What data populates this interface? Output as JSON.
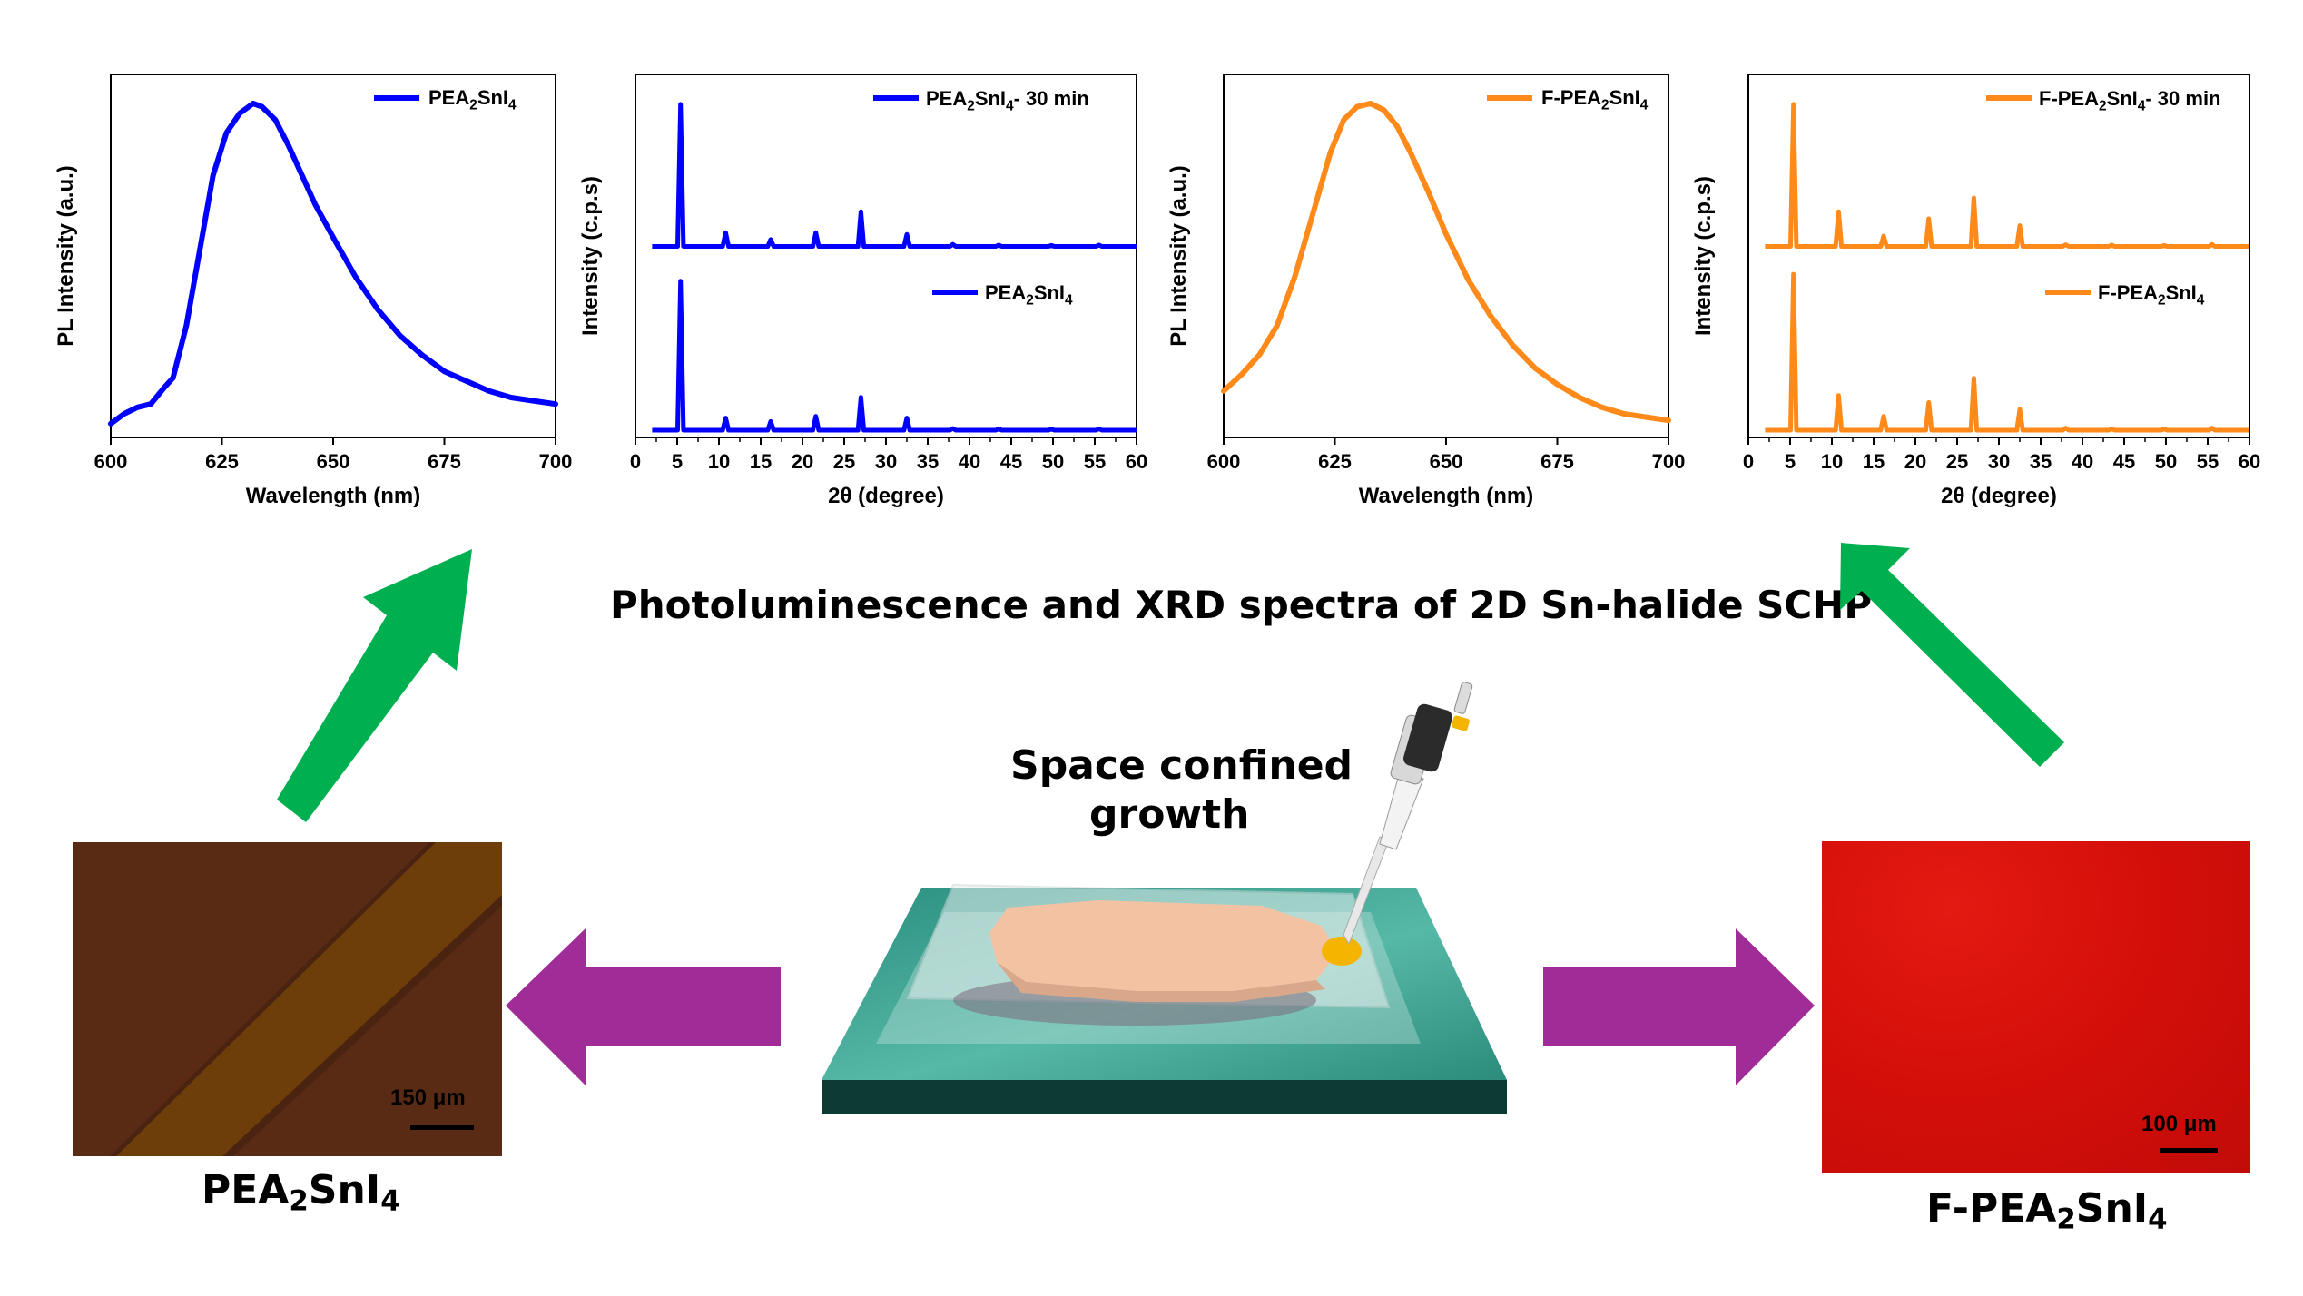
{
  "figure_title": "Photoluminescence and XRD spectra of 2D Sn-halide SCHP",
  "center_label_line1": "Space confined",
  "center_label_line2": "growth",
  "colors": {
    "blue": "#0000ff",
    "orange": "#ff8a1a",
    "green_arrow": "#00b050",
    "purple_arrow": "#a02c97"
  },
  "left_sample": {
    "name_prefix": "PEA",
    "name_sub1": "2",
    "name_mid": "SnI",
    "name_sub2": "4",
    "scale_bar": "150 μm"
  },
  "right_sample": {
    "name_prefix": "F-PEA",
    "name_sub1": "2",
    "name_mid": "SnI",
    "name_sub2": "4",
    "scale_bar": "100 μm"
  },
  "chart_data": [
    {
      "type": "line",
      "color": "#0000ff",
      "xlabel": "Wavelength (nm)",
      "ylabel": "PL Intensity (a.u.)",
      "xlim": [
        600,
        700
      ],
      "xticks": [
        "600",
        "625",
        "650",
        "675",
        "700"
      ],
      "ylim": [
        0,
        1
      ],
      "legend": [
        {
          "prefix": "PEA",
          "sub1": "2",
          "mid": "SnI",
          "sub2": "4",
          "suffix": ""
        }
      ],
      "legend_position": "top-right",
      "x": [
        600,
        603,
        606,
        609,
        612,
        614,
        617,
        620,
        623,
        626,
        629,
        632,
        634,
        637,
        640,
        643,
        646,
        650,
        655,
        660,
        665,
        670,
        675,
        680,
        685,
        690,
        695,
        700
      ],
      "y": [
        0.02,
        0.05,
        0.07,
        0.08,
        0.13,
        0.16,
        0.32,
        0.55,
        0.78,
        0.91,
        0.97,
        1.0,
        0.99,
        0.95,
        0.87,
        0.78,
        0.69,
        0.59,
        0.47,
        0.37,
        0.29,
        0.23,
        0.18,
        0.15,
        0.12,
        0.1,
        0.09,
        0.08
      ]
    },
    {
      "type": "line",
      "color": "#0000ff",
      "xlabel": "2θ (degree)",
      "ylabel": "Intensity (c.p.s)",
      "xlim": [
        0,
        60
      ],
      "xticks": [
        "0",
        "5",
        "10",
        "15",
        "20",
        "25",
        "30",
        "35",
        "40",
        "45",
        "50",
        "55",
        "60"
      ],
      "legend_position": "top-right",
      "series": [
        {
          "name_prefix": "PEA",
          "name_sub1": "2",
          "name_mid": "SnI",
          "name_sub2": "4",
          "name_suffix": "- 30 min",
          "baseline": 0.53,
          "peaks": [
            [
              5.4,
              0.41
            ],
            [
              10.8,
              0.04
            ],
            [
              16.2,
              0.02
            ],
            [
              21.6,
              0.04
            ],
            [
              27.0,
              0.1
            ],
            [
              32.5,
              0.035
            ],
            [
              38.0,
              0.006
            ],
            [
              43.5,
              0.004
            ],
            [
              49.8,
              0.003
            ],
            [
              55.5,
              0.004
            ]
          ]
        },
        {
          "name_prefix": "PEA",
          "name_sub1": "2",
          "name_mid": "SnI",
          "name_sub2": "4",
          "name_suffix": "",
          "baseline": 0.0,
          "peaks": [
            [
              5.4,
              0.43
            ],
            [
              10.8,
              0.035
            ],
            [
              16.2,
              0.025
            ],
            [
              21.6,
              0.04
            ],
            [
              27.0,
              0.095
            ],
            [
              32.5,
              0.035
            ],
            [
              38.0,
              0.005
            ],
            [
              43.5,
              0.004
            ],
            [
              49.8,
              0.003
            ],
            [
              55.5,
              0.004
            ]
          ]
        }
      ]
    },
    {
      "type": "line",
      "color": "#ff8a1a",
      "xlabel": "Wavelength (nm)",
      "ylabel": "PL Intensity (a.u.)",
      "xlim": [
        600,
        700
      ],
      "xticks": [
        "600",
        "625",
        "650",
        "675",
        "700"
      ],
      "ylim": [
        0,
        1
      ],
      "legend": [
        {
          "prefix": "F-PEA",
          "sub1": "2",
          "mid": "SnI",
          "sub2": "4",
          "suffix": ""
        }
      ],
      "legend_position": "top-right",
      "x": [
        600,
        604,
        608,
        612,
        616,
        620,
        624,
        627,
        630,
        633,
        636,
        639,
        642,
        646,
        650,
        655,
        660,
        665,
        670,
        675,
        680,
        685,
        690,
        695,
        700
      ],
      "y": [
        0.12,
        0.17,
        0.23,
        0.32,
        0.47,
        0.66,
        0.85,
        0.95,
        0.99,
        1.0,
        0.98,
        0.93,
        0.85,
        0.73,
        0.6,
        0.46,
        0.35,
        0.26,
        0.19,
        0.14,
        0.1,
        0.07,
        0.05,
        0.04,
        0.03
      ]
    },
    {
      "type": "line",
      "color": "#ff8a1a",
      "xlabel": "2θ (degree)",
      "ylabel": "Intensity (c.p.s)",
      "xlim": [
        0,
        60
      ],
      "xticks": [
        "0",
        "5",
        "10",
        "15",
        "20",
        "25",
        "30",
        "35",
        "40",
        "45",
        "50",
        "55",
        "60"
      ],
      "legend_position": "top-right",
      "series": [
        {
          "name_prefix": "F-PEA",
          "name_sub1": "2",
          "name_mid": "SnI",
          "name_sub2": "4",
          "name_suffix": "- 30 min",
          "baseline": 0.53,
          "peaks": [
            [
              5.4,
              0.41
            ],
            [
              10.8,
              0.1
            ],
            [
              16.2,
              0.03
            ],
            [
              21.6,
              0.08
            ],
            [
              27.0,
              0.14
            ],
            [
              32.5,
              0.06
            ],
            [
              38.0,
              0.005
            ],
            [
              43.5,
              0.004
            ],
            [
              49.8,
              0.003
            ],
            [
              55.5,
              0.006
            ]
          ]
        },
        {
          "name_prefix": "F-PEA",
          "name_sub1": "2",
          "name_mid": "SnI",
          "name_sub2": "4",
          "name_suffix": "",
          "baseline": 0.0,
          "peaks": [
            [
              5.4,
              0.45
            ],
            [
              10.8,
              0.1
            ],
            [
              16.2,
              0.04
            ],
            [
              21.6,
              0.08
            ],
            [
              27.0,
              0.15
            ],
            [
              32.5,
              0.06
            ],
            [
              38.0,
              0.006
            ],
            [
              43.5,
              0.004
            ],
            [
              49.8,
              0.004
            ],
            [
              55.5,
              0.006
            ]
          ]
        }
      ]
    }
  ]
}
